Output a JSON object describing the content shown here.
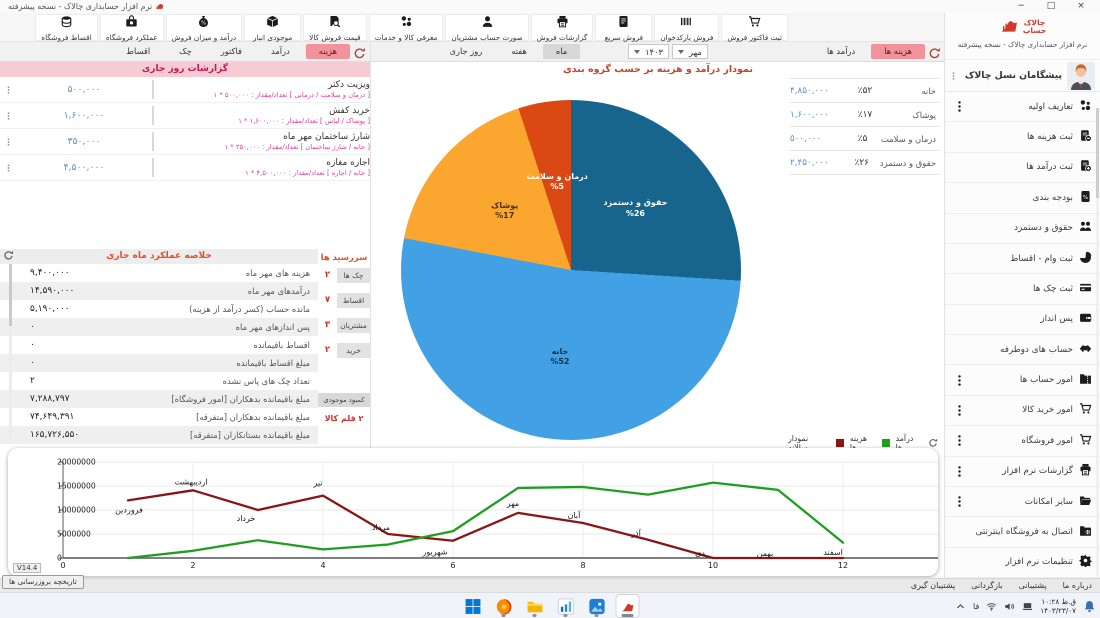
{
  "window": {
    "title": "نرم افزار حسابداری چالاک - نسخه پیشرفته",
    "controls": [
      "−",
      "□",
      "×"
    ]
  },
  "brand": {
    "line1": "چالاک",
    "line2": "حساب",
    "subtitle": "نرم افزار حسابداری چالاک - نسخه پیشرفته"
  },
  "toolbar": {
    "items": [
      {
        "key": "sale-invoice",
        "label": "ثبت فاکتور فروش",
        "icon": "cart"
      },
      {
        "key": "barcode-sale",
        "label": "فروش بارکدخوان",
        "icon": "barcode"
      },
      {
        "key": "quick-sale",
        "label": "فروش سریع",
        "icon": "doc"
      },
      {
        "key": "sale-reports",
        "label": "گزارشات فروش",
        "icon": "printer"
      },
      {
        "key": "customer-bills",
        "label": "صورت حساب مشتریان",
        "icon": "person"
      },
      {
        "key": "define-goods",
        "label": "معرفی کالا و خدمات",
        "icon": "pills"
      },
      {
        "key": "sale-price",
        "label": "قیمت فروش کالا",
        "icon": "price-search"
      },
      {
        "key": "inventory",
        "label": "موجودی انبار",
        "icon": "box"
      },
      {
        "key": "income-sales",
        "label": "درآمد و میزان فروش",
        "icon": "money-bag"
      },
      {
        "key": "store-performance",
        "label": "عملکرد فروشگاه",
        "icon": "case"
      },
      {
        "key": "store-installments",
        "label": "اقساط فروشگاه",
        "icon": "coins"
      }
    ]
  },
  "left_tabs": {
    "items": [
      {
        "key": "expense",
        "label": "هزینه",
        "active": true
      },
      {
        "key": "income",
        "label": "درآمد",
        "active": false
      },
      {
        "key": "invoice",
        "label": "فاکتور",
        "active": false
      },
      {
        "key": "check",
        "label": "چک",
        "active": false
      },
      {
        "key": "installment",
        "label": "اقساط",
        "active": false
      }
    ]
  },
  "main_tabs": {
    "view": [
      {
        "key": "expenses",
        "label": "هزینه ها",
        "active": true
      },
      {
        "key": "incomes",
        "label": "درآمد ها",
        "active": false
      }
    ],
    "month_select": "مهر",
    "year_select": "۱۴۰۳",
    "period": [
      {
        "key": "month",
        "label": "ماه",
        "active": true
      },
      {
        "key": "week",
        "label": "هفته",
        "active": false
      },
      {
        "key": "today",
        "label": "روز جاری",
        "active": false
      }
    ]
  },
  "reports_panel": {
    "title": "گزارشات روز جاری",
    "items": [
      {
        "title": "ویزیت دکتر",
        "sub": "[ درمان و سلامت / درمانی ]    تعداد/مقدار : ۵۰۰,۰۰۰ * ۱",
        "amount": "۵۰۰,۰۰۰"
      },
      {
        "title": "خرید کفش",
        "sub": "[ پوشاک / لباس ]    تعداد/مقدار : ۱,۶۰۰,۰۰۰ * ۱",
        "amount": "۱,۶۰۰,۰۰۰"
      },
      {
        "title": "شارژ ساختمان مهر ماه",
        "sub": "[ خانه / شارژ ساختمان ]    تعداد/مقدار : ۳۵۰,۰۰۰ * ۱",
        "amount": "۳۵۰,۰۰۰"
      },
      {
        "title": "اجاره مغازه",
        "sub": "[ خانه / اجاره ]    تعداد/مقدار : ۴,۵۰۰,۰۰۰ * ۱",
        "amount": "۴,۵۰۰,۰۰۰"
      }
    ]
  },
  "summary_panel": {
    "title": "خلاصه عملکرد ماه جاری",
    "rows": [
      {
        "label": "هزینه های مهر ماه",
        "value": "۹,۴۰۰,۰۰۰"
      },
      {
        "label": "درآمدهای مهر ماه",
        "value": "۱۴,۵۹۰,۰۰۰"
      },
      {
        "label": "مانده حساب (کسر درآمد از هزینه)",
        "value": "۵,۱۹۰,۰۰۰"
      },
      {
        "label": "پس اندازهای  مهر ماه",
        "value": "۰"
      },
      {
        "label": "اقساط باقیمانده",
        "value": "۰"
      },
      {
        "label": "مبلغ اقساط باقیمانده",
        "value": "۰"
      },
      {
        "label": "تعداد چک های پاس نشده",
        "value": "۲"
      },
      {
        "label": "مبلغ باقیمانده بدهکاران [امور فروشگاه]",
        "value": "۷,۲۸۸,۷۹۷"
      },
      {
        "label": "مبلغ باقیمانده بدهکاران [متفرقه]",
        "value": "۷۴,۶۴۹,۳۹۱"
      },
      {
        "label": "مبلغ باقیمانده بستانکاران [متفرقه]",
        "value": "۱۶۵,۷۲۶,۵۵۰"
      }
    ]
  },
  "due_panel": {
    "title": "سررسید ها",
    "rows": [
      {
        "label": "چک ها",
        "count": "۲"
      },
      {
        "label": "اقساط",
        "count": "۷"
      },
      {
        "label": "مشتریان",
        "count": "۳"
      },
      {
        "label": "خرید",
        "count": "۲"
      }
    ],
    "shortage_label": "کمبود موجودی",
    "shortage_value": "۲ قلم کالا"
  },
  "chart_data": [
    {
      "type": "pie",
      "title": "نمودار درآمد و هزینه بر حسب گروه بندی",
      "rotation_deg": 93.6,
      "slices": [
        {
          "key": "home",
          "name": "خانه",
          "percent": 52,
          "percent_fa": "٪۵۲",
          "pie_percent": "%52",
          "value_fa": "۴,۸۵۰,۰۰۰",
          "color": "#42A0E5",
          "label_color": "#16344a"
        },
        {
          "key": "clothing",
          "name": "پوشاک",
          "percent": 17,
          "percent_fa": "٪۱۷",
          "pie_percent": "%17",
          "value_fa": "۱,۶۰۰,۰۰۰",
          "color": "#FAA62F",
          "label_color": "#4a3009"
        },
        {
          "key": "health",
          "name": "درمان و سلامت",
          "percent": 5,
          "percent_fa": "٪۵",
          "pie_percent": "%5",
          "value_fa": "۵۰۰,۰۰۰",
          "color": "#DA4814",
          "label_color": "#ffffff"
        },
        {
          "key": "salary",
          "name": "حقوق و دستمزد",
          "percent": 26,
          "percent_fa": "٪۲۶",
          "pie_percent": "%26",
          "value_fa": "۲,۴۵۰,۰۰۰",
          "color": "#17658D",
          "label_color": "#ffffff"
        }
      ]
    },
    {
      "type": "line",
      "legend_title": "نمودار سالانه",
      "months": [
        "فروردین",
        "اردیبهشت",
        "خرداد",
        "تیر",
        "مرداد",
        "شهریور",
        "مهر",
        "آبان",
        "آذر",
        "دی",
        "بهمن",
        "اسفند"
      ],
      "series": [
        {
          "name": "هزینه ها",
          "color": "#8B1414",
          "values": [
            12000000,
            14100000,
            10000000,
            13000000,
            5000000,
            3600000,
            9400000,
            7300000,
            3800000,
            0,
            0,
            0
          ]
        },
        {
          "name": "درآمد ها",
          "color": "#1F9E1F",
          "values": [
            0,
            1500000,
            3700000,
            1800000,
            2800000,
            5600000,
            14590000,
            14800000,
            13200000,
            15700000,
            14200000,
            3200000
          ]
        }
      ],
      "ylim": [
        0,
        20000000
      ],
      "y_ticks": [
        0,
        5000000,
        10000000,
        15000000,
        20000000
      ],
      "x_ticks": [
        0,
        2,
        4,
        6,
        8,
        10,
        12
      ],
      "grid": true,
      "legend_position": "top-right"
    }
  ],
  "sidebar": {
    "header": {
      "label": "پیشگامان نسل چالاک"
    },
    "items": [
      {
        "key": "definitions",
        "label": "تعاریف اولیه",
        "icon": "pills",
        "kebab": true
      },
      {
        "key": "register-expenses",
        "label": "ثبت هزینه ها",
        "icon": "doc-minus",
        "kebab": false
      },
      {
        "key": "register-incomes",
        "label": "ثبت درآمد ها",
        "icon": "doc-plus",
        "kebab": false
      },
      {
        "key": "budgeting",
        "label": "بودجه بندی",
        "icon": "doc-percent",
        "kebab": false
      },
      {
        "key": "payroll",
        "label": "حقوق و دستمزد",
        "icon": "people",
        "kebab": false
      },
      {
        "key": "loans-installments",
        "label": "ثبت وام - اقساط",
        "icon": "pie",
        "kebab": false
      },
      {
        "key": "checks",
        "label": "ثبت چک ها",
        "icon": "card",
        "kebab": false
      },
      {
        "key": "savings",
        "label": "پس انداز",
        "icon": "wallet",
        "kebab": false
      },
      {
        "key": "two-way-accounts",
        "label": "حساب های دوطرفه",
        "icon": "handshake",
        "kebab": false
      },
      {
        "key": "accounts",
        "label": "امور حساب ها",
        "icon": "folder-docs",
        "kebab": true
      },
      {
        "key": "purchases",
        "label": "امور خرید کالا",
        "icon": "cart",
        "kebab": true
      },
      {
        "key": "store",
        "label": "امور فروشگاه",
        "icon": "cart",
        "kebab": true
      },
      {
        "key": "app-reports",
        "label": "گزارشات نرم افزار",
        "icon": "printer",
        "kebab": true
      },
      {
        "key": "other-features",
        "label": "سایر امکانات",
        "icon": "folder-open",
        "kebab": true
      },
      {
        "key": "online-store",
        "label": "اتصال به فروشگاه اینترنتی",
        "icon": "folder-globe",
        "kebab": false
      },
      {
        "key": "settings",
        "label": "تنظیمات نرم افزار",
        "icon": "gear",
        "kebab": false
      }
    ]
  },
  "version": {
    "label": "V14.4",
    "history_button": "تاریخچه بروزرسانی ها"
  },
  "bottombar": {
    "items": [
      {
        "key": "about",
        "label": "درباره ما"
      },
      {
        "key": "support",
        "label": "پشتیبانی"
      },
      {
        "key": "restore",
        "label": "بازگردانی"
      },
      {
        "key": "backup",
        "label": "پشتیبان گیری"
      }
    ]
  },
  "taskbar": {
    "apps": [
      {
        "key": "windows-start",
        "running": false,
        "active": false
      },
      {
        "key": "firefox",
        "running": true,
        "active": false
      },
      {
        "key": "file-explorer",
        "running": true,
        "active": false
      },
      {
        "key": "chart-app",
        "running": true,
        "active": false
      },
      {
        "key": "photos",
        "running": true,
        "active": false
      },
      {
        "key": "chalak",
        "running": false,
        "active": true
      }
    ],
    "tray": {
      "lang": "فا",
      "time": "۱۰:۲۸ ق.ظ",
      "date": "۱۴۰۳/۲۳/۰۷"
    }
  }
}
